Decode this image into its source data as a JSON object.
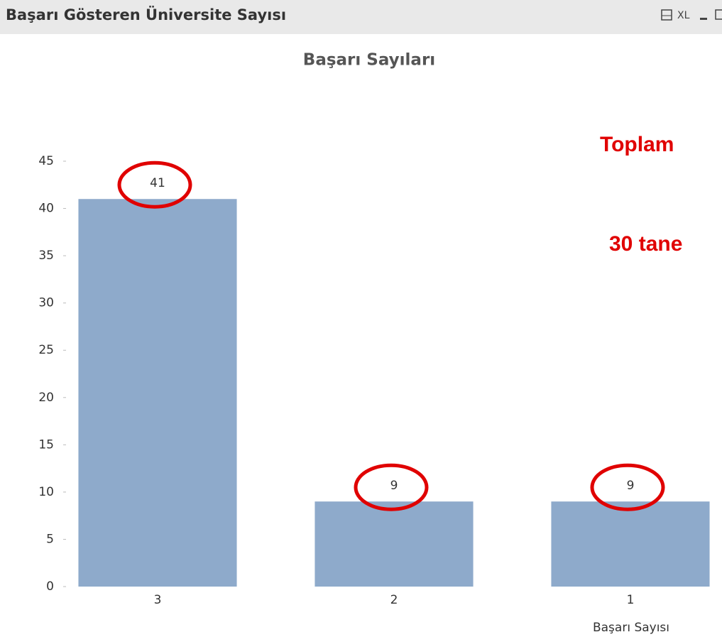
{
  "window_title": "Başarı Gösteren Üniversite Sayısı",
  "window_buttons": [
    "XL"
  ],
  "chart_data": {
    "type": "bar",
    "title": "Başarı Sayıları",
    "categories": [
      "3",
      "2",
      "1"
    ],
    "values": [
      41,
      9,
      9
    ],
    "color": "#8eaacb",
    "x_label": "Başarı Sayısı",
    "ylim": [
      0,
      45
    ],
    "yticks": [
      0,
      5,
      10,
      15,
      20,
      25,
      30,
      35,
      40,
      45
    ],
    "annotations": [
      "Toplam",
      "30 tane"
    ]
  }
}
